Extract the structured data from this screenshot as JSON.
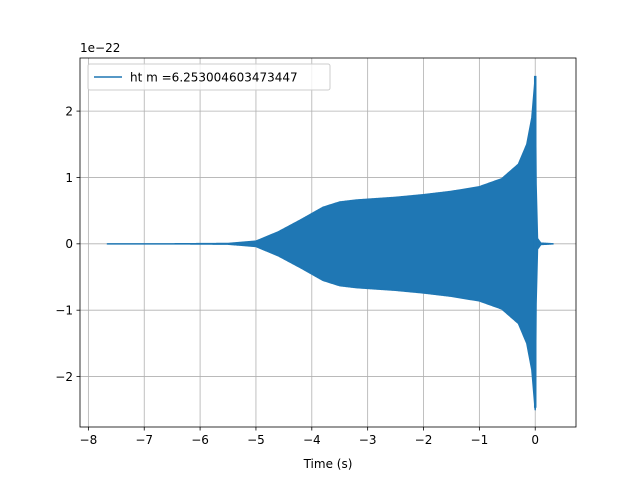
{
  "chart_data": {
    "type": "line",
    "title": "",
    "xlabel": "Time (s)",
    "ylabel": "",
    "y_scale_note": "1e−22",
    "xlim": [
      -8.15,
      0.73
    ],
    "ylim": [
      -2.76,
      2.8
    ],
    "x_ticks": [
      -8,
      -7,
      -6,
      -5,
      -4,
      -3,
      -2,
      -1,
      0
    ],
    "x_tick_labels": [
      "−8",
      "−7",
      "−6",
      "−5",
      "−4",
      "−3",
      "−2",
      "−1",
      "0"
    ],
    "y_ticks": [
      -2,
      -1,
      0,
      1,
      2
    ],
    "y_tick_labels": [
      "−2",
      "−1",
      "0",
      "1",
      "2"
    ],
    "grid": true,
    "legend_position": "upper-left",
    "series": [
      {
        "name": "ht m =6.253004603473447",
        "color": "#1f77b4",
        "x_range": [
          -7.66,
          0.32
        ],
        "description": "oscillating strain waveform; amplitude envelope in units of 1e-22",
        "envelope": [
          {
            "x": -7.66,
            "y": 0.0
          },
          {
            "x": -6.5,
            "y": 0.0
          },
          {
            "x": -5.5,
            "y": 0.005
          },
          {
            "x": -5.0,
            "y": 0.04
          },
          {
            "x": -4.6,
            "y": 0.18
          },
          {
            "x": -4.2,
            "y": 0.36
          },
          {
            "x": -3.8,
            "y": 0.55
          },
          {
            "x": -3.5,
            "y": 0.63
          },
          {
            "x": -3.2,
            "y": 0.66
          },
          {
            "x": -2.5,
            "y": 0.7
          },
          {
            "x": -2.0,
            "y": 0.74
          },
          {
            "x": -1.5,
            "y": 0.79
          },
          {
            "x": -1.0,
            "y": 0.86
          },
          {
            "x": -0.6,
            "y": 0.98
          },
          {
            "x": -0.3,
            "y": 1.2
          },
          {
            "x": -0.15,
            "y": 1.5
          },
          {
            "x": -0.06,
            "y": 1.9
          },
          {
            "x": 0.0,
            "y": 2.5
          },
          {
            "x": 0.015,
            "y": 0.9
          },
          {
            "x": 0.04,
            "y": 0.08
          },
          {
            "x": 0.1,
            "y": 0.01
          },
          {
            "x": 0.32,
            "y": 0.0
          }
        ],
        "peak_max": 2.53,
        "peak_min": -2.47
      }
    ]
  }
}
